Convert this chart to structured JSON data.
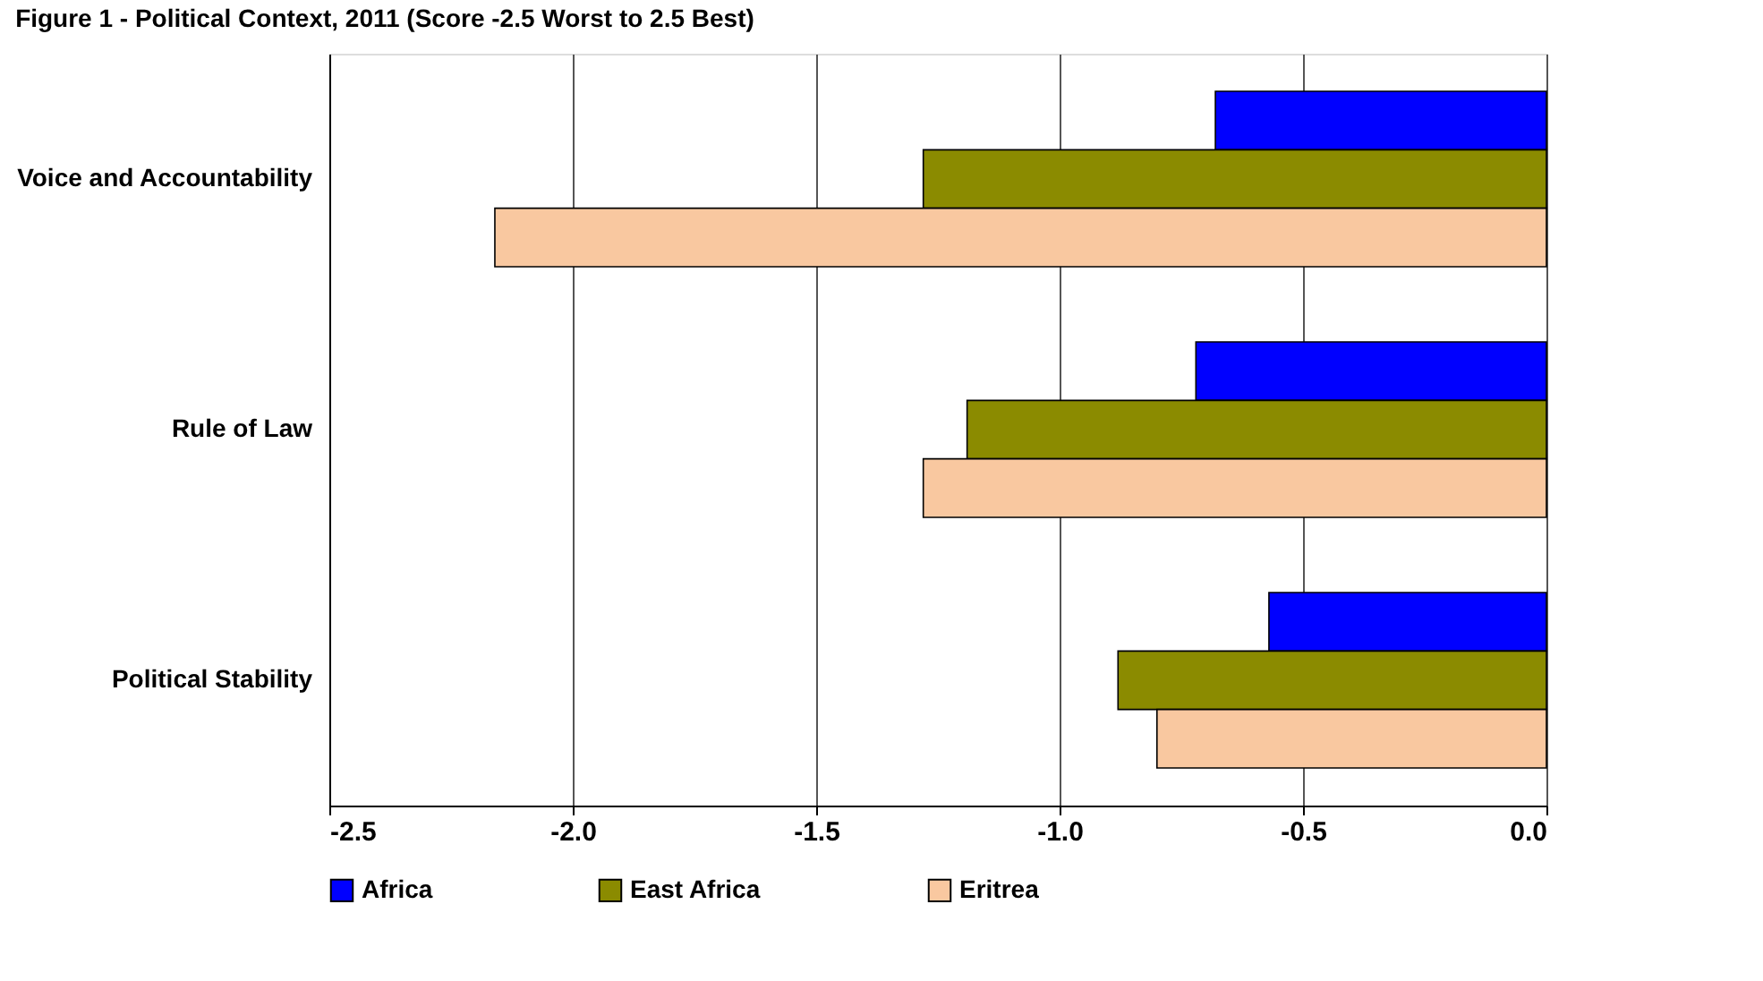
{
  "chart_data": {
    "type": "bar",
    "orientation": "horizontal",
    "title": "Figure 1 - Political Context, 2011 (Score -2.5 Worst to 2.5 Best)",
    "categories": [
      "Voice and Accountability",
      "Rule of Law",
      "Political Stability"
    ],
    "series": [
      {
        "name": "Africa",
        "color": "#0000ff",
        "values": [
          -0.68,
          -0.72,
          -0.57
        ]
      },
      {
        "name": "East Africa",
        "color": "#8b8b00",
        "values": [
          -1.28,
          -1.19,
          -0.88
        ]
      },
      {
        "name": "Eritrea",
        "color": "#f9c8a0",
        "values": [
          -2.16,
          -1.28,
          -0.8
        ]
      }
    ],
    "xlim": [
      -2.5,
      0.0
    ],
    "xticks": [
      {
        "value": -2.5,
        "label": "-2.5"
      },
      {
        "value": -2.0,
        "label": "-2.0"
      },
      {
        "value": -1.5,
        "label": "-1.5"
      },
      {
        "value": -1.0,
        "label": "-1.0"
      },
      {
        "value": -0.5,
        "label": "-0.5"
      },
      {
        "value": 0.0,
        "label": "0.0"
      }
    ],
    "grid": "x",
    "legend": "bottom"
  }
}
